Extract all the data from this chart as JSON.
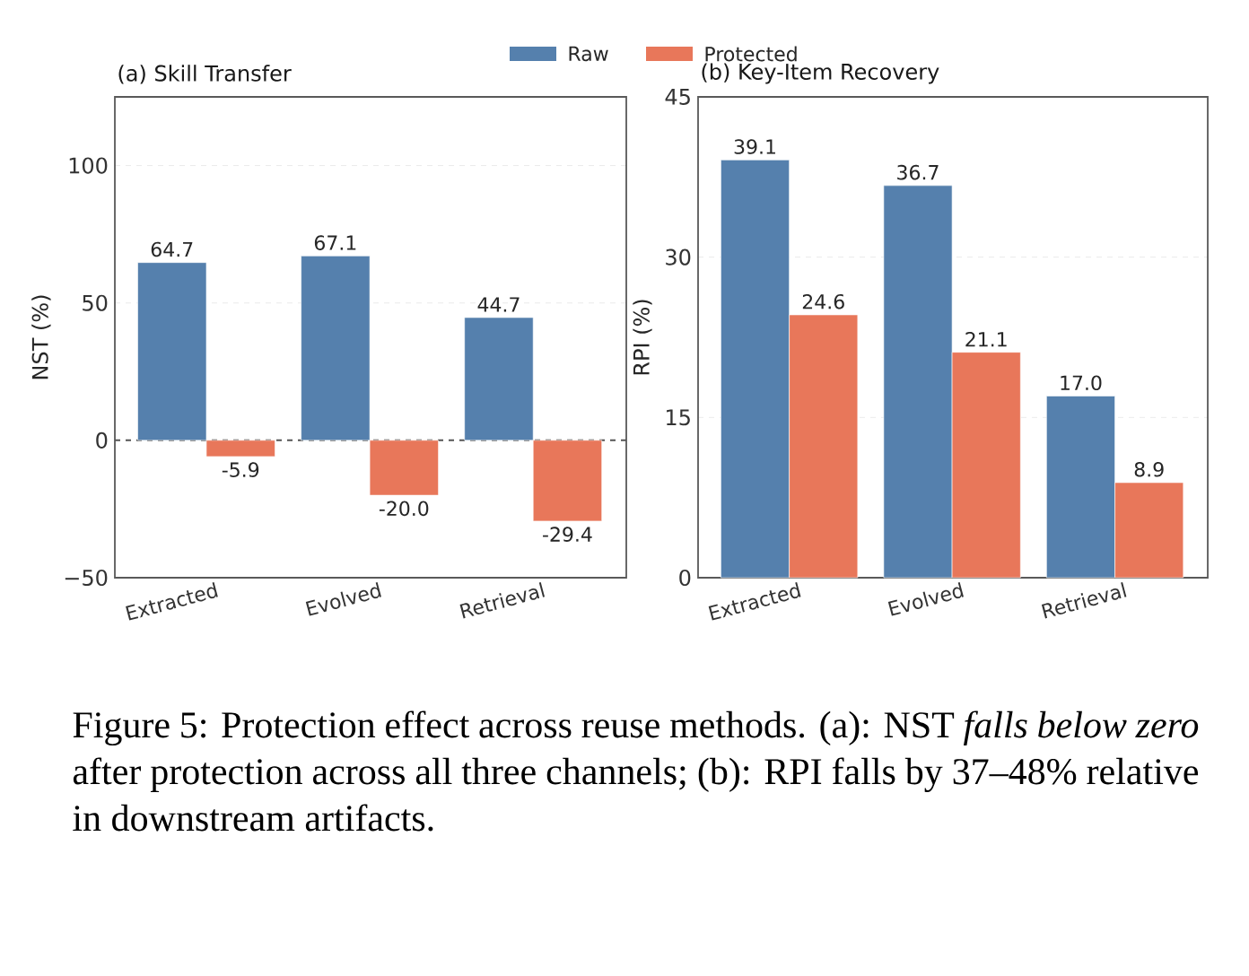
{
  "chart_data": [
    {
      "type": "bar",
      "title": "(a) Skill Transfer",
      "ylabel": "NST (%)",
      "categories": [
        "Extracted",
        "Evolved",
        "Retrieval"
      ],
      "series": [
        {
          "name": "Raw",
          "color": "#5580ad",
          "values": [
            64.7,
            67.1,
            44.7
          ],
          "value_labels": [
            "64.7",
            "67.1",
            "44.7"
          ]
        },
        {
          "name": "Protected",
          "color": "#e8775a",
          "values": [
            -5.9,
            -20.0,
            -29.4
          ],
          "value_labels": [
            "-5.9",
            "-20.0",
            "-29.4"
          ]
        }
      ],
      "ylim": [
        -50,
        125
      ],
      "yticks": [
        {
          "value": -50,
          "label": "−50"
        },
        0,
        50,
        100
      ],
      "grid": "y",
      "legend": "top",
      "ref_lines": [
        {
          "axis": "y",
          "value": 0,
          "line_style": "dashed",
          "color": "#555555"
        }
      ],
      "annotations": [
        "Figure 5: Protection effect across reuse methods. (a): NST *falls below zero* after protection across all three channels; (b): RPI falls by 37–48% relative in downstream artifacts."
      ]
    },
    {
      "type": "bar",
      "title": "(b) Key-Item Recovery",
      "ylabel": "RPI (%)",
      "categories": [
        "Extracted",
        "Evolved",
        "Retrieval"
      ],
      "series": [
        {
          "color": "#5580ad",
          "values": [
            39.1,
            36.7,
            17.0
          ],
          "value_labels": [
            "39.1",
            "36.7",
            "17.0"
          ]
        },
        {
          "color": "#e8775a",
          "values": [
            24.6,
            21.1,
            8.9
          ],
          "value_labels": [
            "24.6",
            "21.1",
            "8.9"
          ]
        }
      ],
      "ylim": [
        0,
        45
      ],
      "yticks": [
        0,
        15,
        30,
        45
      ],
      "grid": "y"
    }
  ]
}
